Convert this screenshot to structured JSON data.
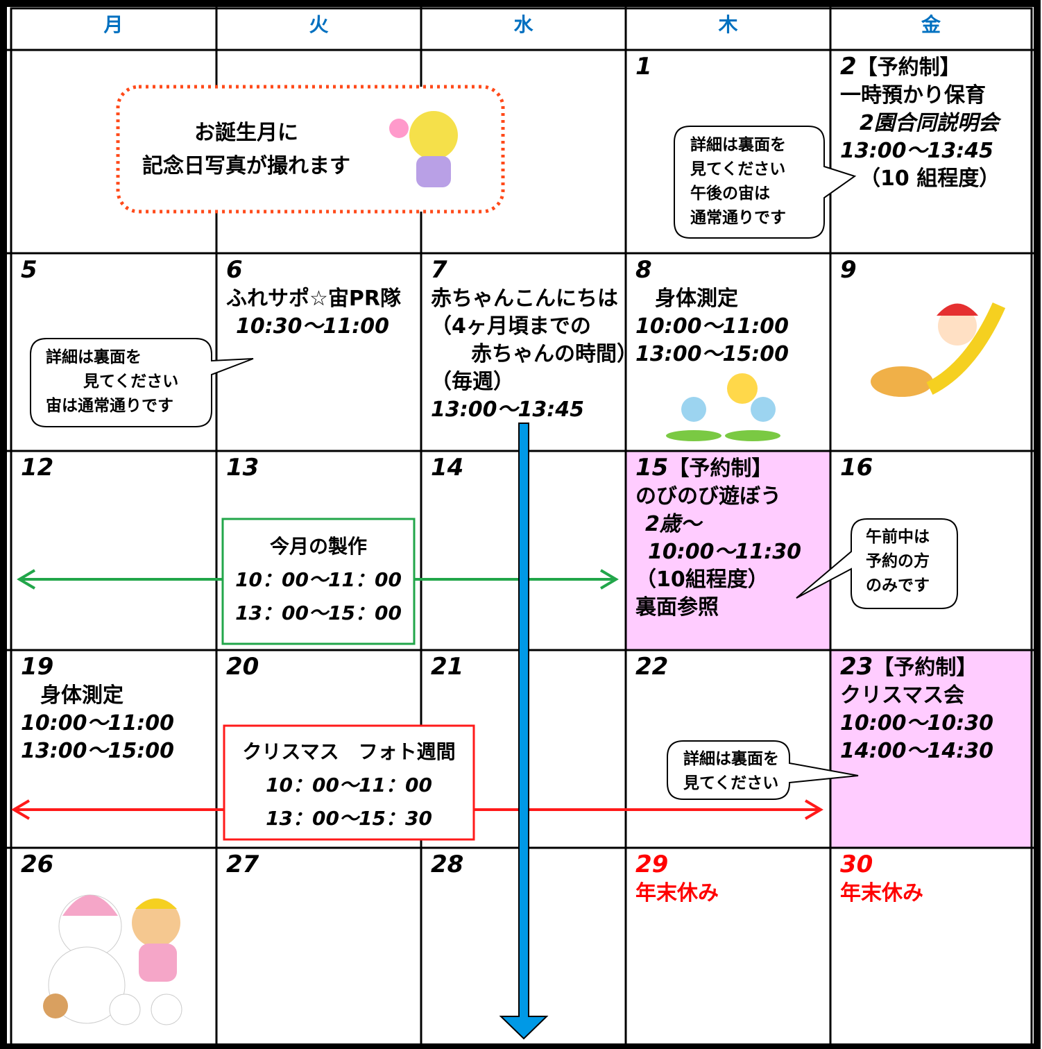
{
  "header": {
    "days": [
      "月",
      "火",
      "水",
      "木",
      "金"
    ],
    "color": "#0070c0"
  },
  "weeks": [
    {
      "thu": {
        "day": "1"
      },
      "fri": {
        "day": "2",
        "tag": "【予約制】",
        "lines": [
          "一時預かり保育",
          "2園合同説明会",
          "13:00～13:45",
          "（10 組程度）"
        ]
      }
    },
    {
      "mon": {
        "day": "5"
      },
      "tue": {
        "day": "6",
        "lines": [
          "ふれサポ☆宙PR隊",
          "10:30～11:00"
        ]
      },
      "wed": {
        "day": "7",
        "lines": [
          "赤ちゃんこんにちは",
          "（4ヶ月頃までの",
          "赤ちゃんの時間）",
          "（毎週）",
          "13:00～13:45"
        ]
      },
      "thu": {
        "day": "8",
        "lines": [
          "身体測定",
          "10:00～11:00",
          "13:00～15:00"
        ]
      },
      "fri": {
        "day": "9"
      }
    },
    {
      "mon": {
        "day": "12"
      },
      "tue": {
        "day": "13"
      },
      "wed": {
        "day": "14"
      },
      "thu": {
        "day": "15",
        "tag": "【予約制】",
        "lines": [
          "のびのび遊ぼう",
          "2歳～",
          "10:00～11:30",
          "（10組程度）",
          "裏面参照"
        ],
        "background": "#ffccff"
      },
      "fri": {
        "day": "16"
      }
    },
    {
      "mon": {
        "day": "19",
        "lines": [
          "身体測定",
          "10:00～11:00",
          "13:00～15:00"
        ]
      },
      "tue": {
        "day": "20"
      },
      "wed": {
        "day": "21"
      },
      "thu": {
        "day": "22"
      },
      "fri": {
        "day": "23",
        "tag": "【予約制】",
        "lines": [
          "クリスマス会",
          "10:00～10:30",
          "14:00～14:30"
        ],
        "background": "#ffccff"
      }
    },
    {
      "mon": {
        "day": "26"
      },
      "tue": {
        "day": "27"
      },
      "wed": {
        "day": "28"
      },
      "thu": {
        "day": "29",
        "lines": [
          "年末休み"
        ],
        "color": "#ff0000"
      },
      "fri": {
        "day": "30",
        "lines": [
          "年末休み"
        ],
        "color": "#ff0000"
      }
    }
  ],
  "notes": [
    {
      "lines": [
        "詳細は裏面を",
        "見てください",
        "午後の宙は",
        "通常通りです"
      ]
    },
    {
      "lines": [
        "詳細は裏面を",
        "見てください",
        "宙は通常通りです"
      ]
    },
    {
      "lines": [
        "午前中は",
        "予約の方",
        "のみです"
      ]
    },
    {
      "lines": [
        "詳細は裏面を",
        "見てください"
      ]
    }
  ],
  "banners": {
    "birthday": {
      "lines": [
        "お誕生月に",
        "記念日写真が撮れます"
      ]
    },
    "production": {
      "lines": [
        "今月の製作",
        "10：00～11：00",
        "13：00～15：00"
      ],
      "color": "#22a64a"
    },
    "christmas": {
      "lines": [
        "クリスマス　フォト週間",
        "10：00～11：00",
        "13：00～15：30"
      ],
      "color": "#ff1a1a"
    }
  }
}
